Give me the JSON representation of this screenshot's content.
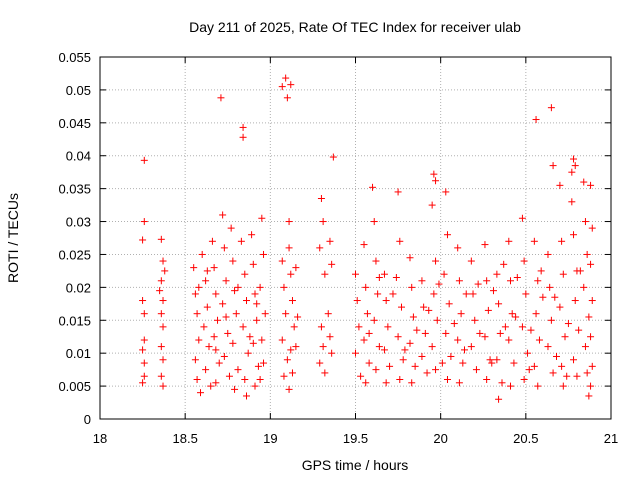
{
  "chart_data": {
    "type": "scatter",
    "title": "Day 211 of 2025, Rate Of TEC Index for receiver ulab",
    "xlabel": "GPS time / hours",
    "ylabel": "ROTI / TECUs",
    "xlim": [
      18,
      21
    ],
    "ylim": [
      0,
      0.055
    ],
    "xticks": [
      18,
      18.5,
      19,
      19.5,
      20,
      20.5,
      21
    ],
    "xtick_labels": [
      "18",
      "18.5",
      "19",
      "19.5",
      "20",
      "20.5",
      "21"
    ],
    "yticks": [
      0,
      0.005,
      0.01,
      0.015,
      0.02,
      0.025,
      0.03,
      0.035,
      0.04,
      0.045,
      0.05,
      0.055
    ],
    "ytick_labels": [
      "0",
      "0.005",
      "0.01",
      "0.015",
      "0.02",
      "0.025",
      "0.03",
      "0.035",
      "0.04",
      "0.045",
      "0.05",
      "0.055"
    ],
    "grid": true,
    "marker": "+",
    "color": "#ff0000",
    "series": [
      {
        "name": "ROTI",
        "points": [
          [
            18.26,
            0.0393
          ],
          [
            18.26,
            0.03
          ],
          [
            18.25,
            0.0272
          ],
          [
            18.25,
            0.018
          ],
          [
            18.26,
            0.016
          ],
          [
            18.25,
            0.0105
          ],
          [
            18.26,
            0.0065
          ],
          [
            18.25,
            0.0055
          ],
          [
            18.26,
            0.012
          ],
          [
            18.26,
            0.0085
          ],
          [
            18.36,
            0.0273
          ],
          [
            18.37,
            0.024
          ],
          [
            18.36,
            0.021
          ],
          [
            18.37,
            0.018
          ],
          [
            18.36,
            0.016
          ],
          [
            18.37,
            0.014
          ],
          [
            18.36,
            0.011
          ],
          [
            18.37,
            0.009
          ],
          [
            18.36,
            0.0065
          ],
          [
            18.37,
            0.005
          ],
          [
            18.35,
            0.0195
          ],
          [
            18.38,
            0.0225
          ],
          [
            18.55,
            0.023
          ],
          [
            18.56,
            0.019
          ],
          [
            18.57,
            0.016
          ],
          [
            18.58,
            0.012
          ],
          [
            18.56,
            0.009
          ],
          [
            18.57,
            0.006
          ],
          [
            18.59,
            0.004
          ],
          [
            18.6,
            0.025
          ],
          [
            18.62,
            0.021
          ],
          [
            18.63,
            0.017
          ],
          [
            18.61,
            0.014
          ],
          [
            18.64,
            0.011
          ],
          [
            18.62,
            0.0075
          ],
          [
            18.65,
            0.005
          ],
          [
            18.66,
            0.027
          ],
          [
            18.67,
            0.023
          ],
          [
            18.68,
            0.019
          ],
          [
            18.69,
            0.015
          ],
          [
            18.67,
            0.0125
          ],
          [
            18.7,
            0.0085
          ],
          [
            18.68,
            0.0055
          ],
          [
            18.71,
            0.0488
          ],
          [
            18.72,
            0.031
          ],
          [
            18.73,
            0.026
          ],
          [
            18.74,
            0.021
          ],
          [
            18.72,
            0.0175
          ],
          [
            18.75,
            0.013
          ],
          [
            18.73,
            0.0095
          ],
          [
            18.76,
            0.0065
          ],
          [
            18.77,
            0.029
          ],
          [
            18.78,
            0.024
          ],
          [
            18.79,
            0.0195
          ],
          [
            18.8,
            0.016
          ],
          [
            18.78,
            0.0115
          ],
          [
            18.81,
            0.0075
          ],
          [
            18.79,
            0.0045
          ],
          [
            18.84,
            0.0443
          ],
          [
            18.84,
            0.0428
          ],
          [
            18.83,
            0.027
          ],
          [
            18.85,
            0.022
          ],
          [
            18.86,
            0.018
          ],
          [
            18.84,
            0.014
          ],
          [
            18.87,
            0.01
          ],
          [
            18.85,
            0.006
          ],
          [
            18.86,
            0.0035
          ],
          [
            18.89,
            0.028
          ],
          [
            18.9,
            0.0235
          ],
          [
            18.91,
            0.019
          ],
          [
            18.92,
            0.015
          ],
          [
            18.9,
            0.0115
          ],
          [
            18.93,
            0.008
          ],
          [
            18.91,
            0.005
          ],
          [
            18.95,
            0.0305
          ],
          [
            18.96,
            0.025
          ],
          [
            18.94,
            0.02
          ],
          [
            18.97,
            0.016
          ],
          [
            18.95,
            0.012
          ],
          [
            18.96,
            0.0085
          ],
          [
            18.94,
            0.006
          ],
          [
            18.58,
            0.02
          ],
          [
            18.63,
            0.0225
          ],
          [
            18.68,
            0.0105
          ],
          [
            18.74,
            0.0155
          ],
          [
            18.81,
            0.02
          ],
          [
            18.88,
            0.0125
          ],
          [
            18.92,
            0.0175
          ],
          [
            19.07,
            0.0505
          ],
          [
            19.09,
            0.0518
          ],
          [
            19.1,
            0.0488
          ],
          [
            19.12,
            0.0508
          ],
          [
            19.11,
            0.03
          ],
          [
            19.07,
            0.024
          ],
          [
            19.08,
            0.02
          ],
          [
            19.09,
            0.016
          ],
          [
            19.07,
            0.012
          ],
          [
            19.1,
            0.009
          ],
          [
            19.08,
            0.0065
          ],
          [
            19.11,
            0.026
          ],
          [
            19.12,
            0.022
          ],
          [
            19.13,
            0.018
          ],
          [
            19.14,
            0.014
          ],
          [
            19.12,
            0.0105
          ],
          [
            19.13,
            0.007
          ],
          [
            19.11,
            0.0045
          ],
          [
            19.15,
            0.023
          ],
          [
            19.16,
            0.0155
          ],
          [
            19.15,
            0.011
          ],
          [
            19.3,
            0.0335
          ],
          [
            19.31,
            0.03
          ],
          [
            19.29,
            0.026
          ],
          [
            19.32,
            0.022
          ],
          [
            19.3,
            0.014
          ],
          [
            19.31,
            0.011
          ],
          [
            19.29,
            0.0085
          ],
          [
            19.32,
            0.007
          ],
          [
            19.35,
            0.027
          ],
          [
            19.36,
            0.0235
          ],
          [
            19.34,
            0.016
          ],
          [
            19.35,
            0.0125
          ],
          [
            19.36,
            0.01
          ],
          [
            19.37,
            0.0398
          ],
          [
            19.5,
            0.022
          ],
          [
            19.51,
            0.018
          ],
          [
            19.52,
            0.014
          ],
          [
            19.5,
            0.01
          ],
          [
            19.53,
            0.0065
          ],
          [
            19.55,
            0.0265
          ],
          [
            19.56,
            0.02
          ],
          [
            19.57,
            0.016
          ],
          [
            19.55,
            0.012
          ],
          [
            19.58,
            0.0085
          ],
          [
            19.56,
            0.0055
          ],
          [
            19.6,
            0.0352
          ],
          [
            19.61,
            0.03
          ],
          [
            19.62,
            0.024
          ],
          [
            19.63,
            0.019
          ],
          [
            19.61,
            0.015
          ],
          [
            19.64,
            0.011
          ],
          [
            19.62,
            0.0075
          ],
          [
            19.67,
            0.022
          ],
          [
            19.68,
            0.018
          ],
          [
            19.69,
            0.014
          ],
          [
            19.67,
            0.0105
          ],
          [
            19.7,
            0.008
          ],
          [
            19.68,
            0.0055
          ],
          [
            19.75,
            0.0345
          ],
          [
            19.76,
            0.027
          ],
          [
            19.74,
            0.0215
          ],
          [
            19.77,
            0.017
          ],
          [
            19.75,
            0.0125
          ],
          [
            19.78,
            0.009
          ],
          [
            19.76,
            0.006
          ],
          [
            19.82,
            0.0245
          ],
          [
            19.83,
            0.02
          ],
          [
            19.84,
            0.0155
          ],
          [
            19.82,
            0.0115
          ],
          [
            19.85,
            0.008
          ],
          [
            19.83,
            0.0055
          ],
          [
            19.89,
            0.021
          ],
          [
            19.9,
            0.017
          ],
          [
            19.91,
            0.013
          ],
          [
            19.89,
            0.0095
          ],
          [
            19.92,
            0.007
          ],
          [
            19.96,
            0.0372
          ],
          [
            19.97,
            0.0362
          ],
          [
            19.95,
            0.0325
          ],
          [
            19.97,
            0.024
          ],
          [
            19.96,
            0.019
          ],
          [
            19.98,
            0.015
          ],
          [
            19.95,
            0.011
          ],
          [
            19.97,
            0.0075
          ],
          [
            20.03,
            0.0345
          ],
          [
            20.04,
            0.028
          ],
          [
            20.02,
            0.022
          ],
          [
            20.05,
            0.0175
          ],
          [
            20.03,
            0.013
          ],
          [
            20.06,
            0.0095
          ],
          [
            20.04,
            0.006
          ],
          [
            20.1,
            0.026
          ],
          [
            20.11,
            0.021
          ],
          [
            20.12,
            0.016
          ],
          [
            20.1,
            0.012
          ],
          [
            20.13,
            0.0085
          ],
          [
            20.11,
            0.0055
          ],
          [
            20.18,
            0.024
          ],
          [
            20.19,
            0.019
          ],
          [
            20.2,
            0.015
          ],
          [
            20.18,
            0.011
          ],
          [
            20.21,
            0.0075
          ],
          [
            20.26,
            0.0265
          ],
          [
            20.27,
            0.021
          ],
          [
            20.28,
            0.0165
          ],
          [
            20.26,
            0.0125
          ],
          [
            20.29,
            0.009
          ],
          [
            20.27,
            0.006
          ],
          [
            20.33,
            0.022
          ],
          [
            20.34,
            0.0175
          ],
          [
            20.35,
            0.013
          ],
          [
            20.33,
            0.009
          ],
          [
            20.36,
            0.0055
          ],
          [
            20.34,
            0.003
          ],
          [
            20.4,
            0.027
          ],
          [
            20.41,
            0.021
          ],
          [
            20.42,
            0.016
          ],
          [
            20.4,
            0.012
          ],
          [
            20.43,
            0.0085
          ],
          [
            20.41,
            0.005
          ],
          [
            20.48,
            0.0305
          ],
          [
            20.49,
            0.024
          ],
          [
            20.5,
            0.019
          ],
          [
            20.48,
            0.014
          ],
          [
            20.51,
            0.01
          ],
          [
            20.49,
            0.006
          ],
          [
            20.56,
            0.0455
          ],
          [
            20.55,
            0.027
          ],
          [
            20.57,
            0.021
          ],
          [
            20.56,
            0.016
          ],
          [
            20.58,
            0.012
          ],
          [
            20.55,
            0.008
          ],
          [
            20.57,
            0.005
          ],
          [
            20.65,
            0.0473
          ],
          [
            20.66,
            0.0385
          ],
          [
            20.63,
            0.025
          ],
          [
            20.64,
            0.02
          ],
          [
            20.65,
            0.015
          ],
          [
            20.63,
            0.011
          ],
          [
            20.66,
            0.007
          ],
          [
            20.7,
            0.0355
          ],
          [
            20.71,
            0.027
          ],
          [
            20.72,
            0.022
          ],
          [
            20.7,
            0.017
          ],
          [
            20.73,
            0.0125
          ],
          [
            20.71,
            0.008
          ],
          [
            20.72,
            0.005
          ],
          [
            20.77,
            0.0375
          ],
          [
            20.78,
            0.0395
          ],
          [
            20.79,
            0.0385
          ],
          [
            20.77,
            0.033
          ],
          [
            20.78,
            0.028
          ],
          [
            20.8,
            0.0225
          ],
          [
            20.79,
            0.018
          ],
          [
            20.81,
            0.0135
          ],
          [
            20.78,
            0.009
          ],
          [
            20.8,
            0.0065
          ],
          [
            20.84,
            0.036
          ],
          [
            20.85,
            0.03
          ],
          [
            20.86,
            0.025
          ],
          [
            20.84,
            0.02
          ],
          [
            20.87,
            0.0155
          ],
          [
            20.85,
            0.011
          ],
          [
            20.86,
            0.007
          ],
          [
            20.87,
            0.0035
          ],
          [
            20.88,
            0.0355
          ],
          [
            20.89,
            0.029
          ],
          [
            20.88,
            0.0235
          ],
          [
            20.89,
            0.018
          ],
          [
            20.88,
            0.0125
          ],
          [
            20.89,
            0.008
          ],
          [
            20.88,
            0.005
          ],
          [
            19.58,
            0.013
          ],
          [
            19.72,
            0.019
          ],
          [
            19.86,
            0.0135
          ],
          [
            19.99,
            0.0205
          ],
          [
            20.08,
            0.0145
          ],
          [
            20.15,
            0.019
          ],
          [
            20.23,
            0.013
          ],
          [
            20.31,
            0.0195
          ],
          [
            20.38,
            0.014
          ],
          [
            20.45,
            0.0215
          ],
          [
            20.53,
            0.0135
          ],
          [
            20.6,
            0.0185
          ],
          [
            20.68,
            0.0095
          ],
          [
            20.75,
            0.0145
          ],
          [
            19.64,
            0.0215
          ],
          [
            19.79,
            0.0105
          ],
          [
            19.93,
            0.0165
          ],
          [
            20.01,
            0.0085
          ],
          [
            20.14,
            0.0105
          ],
          [
            20.22,
            0.0205
          ],
          [
            20.3,
            0.0085
          ],
          [
            20.37,
            0.0235
          ],
          [
            20.44,
            0.0155
          ],
          [
            20.52,
            0.0075
          ],
          [
            20.59,
            0.0225
          ],
          [
            20.67,
            0.0185
          ],
          [
            20.74,
            0.0065
          ],
          [
            20.82,
            0.0225
          ]
        ]
      }
    ]
  }
}
